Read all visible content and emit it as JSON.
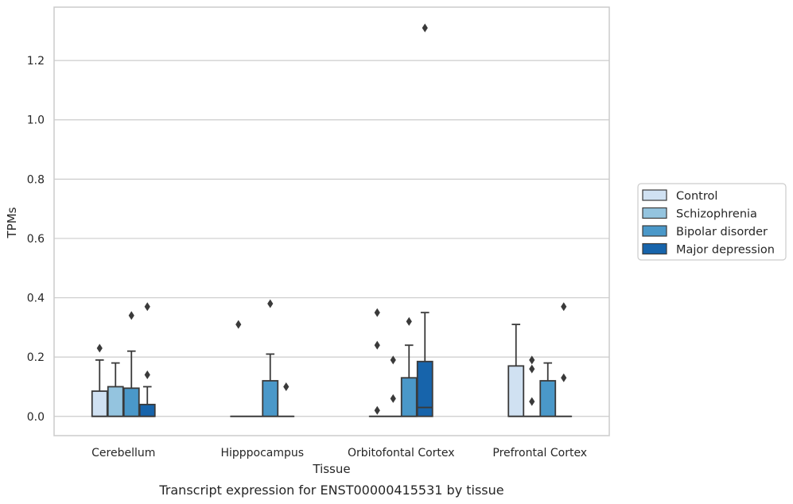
{
  "caption": "Transcript expression for ENST00000415531 by tissue",
  "chart_data": {
    "type": "boxplot",
    "xlabel": "Tissue",
    "ylabel": "TPMs",
    "ylim": [
      -0.065,
      1.38
    ],
    "yticks": [
      0.0,
      0.2,
      0.4,
      0.6,
      0.8,
      1.0,
      1.2
    ],
    "ytick_labels": [
      "0.0",
      "0.2",
      "0.4",
      "0.6",
      "0.8",
      "1.0",
      "1.2"
    ],
    "grid": true,
    "legend_position": "right",
    "categories": [
      "Cerebellum",
      "Hipppocampus",
      "Orbitofontal Cortex",
      "Prefrontal Cortex"
    ],
    "series": [
      {
        "name": "Control",
        "color": "#d0e1f2",
        "boxes": [
          {
            "whislo": 0.0,
            "q1": 0.0,
            "med": 0.0,
            "q3": 0.085,
            "whishi": 0.19,
            "fliers": [
              0.23
            ]
          },
          {
            "whislo": 0.0,
            "q1": 0.0,
            "med": 0.0,
            "q3": 0.0,
            "whishi": 0.0,
            "fliers": [
              0.31
            ]
          },
          {
            "whislo": 0.0,
            "q1": 0.0,
            "med": 0.0,
            "q3": 0.0,
            "whishi": 0.0,
            "fliers": [
              0.02,
              0.24,
              0.35
            ]
          },
          {
            "whislo": 0.0,
            "q1": 0.0,
            "med": 0.0,
            "q3": 0.17,
            "whishi": 0.31,
            "fliers": []
          }
        ]
      },
      {
        "name": "Schizophrenia",
        "color": "#94c4df",
        "boxes": [
          {
            "whislo": 0.0,
            "q1": 0.0,
            "med": 0.0,
            "q3": 0.1,
            "whishi": 0.18,
            "fliers": []
          },
          {
            "whislo": 0.0,
            "q1": 0.0,
            "med": 0.0,
            "q3": 0.0,
            "whishi": 0.0,
            "fliers": []
          },
          {
            "whislo": 0.0,
            "q1": 0.0,
            "med": 0.0,
            "q3": 0.0,
            "whishi": 0.0,
            "fliers": [
              0.06,
              0.19
            ]
          },
          {
            "whislo": 0.0,
            "q1": 0.0,
            "med": 0.0,
            "q3": 0.0,
            "whishi": 0.0,
            "fliers": [
              0.05,
              0.16,
              0.19
            ]
          }
        ]
      },
      {
        "name": "Bipolar disorder",
        "color": "#4a98c9",
        "boxes": [
          {
            "whislo": 0.0,
            "q1": 0.0,
            "med": 0.0,
            "q3": 0.095,
            "whishi": 0.22,
            "fliers": [
              0.34
            ]
          },
          {
            "whislo": 0.0,
            "q1": 0.0,
            "med": 0.0,
            "q3": 0.12,
            "whishi": 0.21,
            "fliers": [
              0.38
            ]
          },
          {
            "whislo": 0.0,
            "q1": 0.0,
            "med": 0.0,
            "q3": 0.13,
            "whishi": 0.24,
            "fliers": [
              0.32
            ]
          },
          {
            "whislo": 0.0,
            "q1": 0.0,
            "med": 0.0,
            "q3": 0.12,
            "whishi": 0.18,
            "fliers": []
          }
        ]
      },
      {
        "name": "Major depression",
        "color": "#1764ab",
        "boxes": [
          {
            "whislo": 0.0,
            "q1": 0.0,
            "med": 0.0,
            "q3": 0.04,
            "whishi": 0.1,
            "fliers": [
              0.14,
              0.37
            ]
          },
          {
            "whislo": 0.0,
            "q1": 0.0,
            "med": 0.0,
            "q3": 0.0,
            "whishi": 0.0,
            "fliers": [
              0.1
            ]
          },
          {
            "whislo": 0.0,
            "q1": 0.0,
            "med": 0.03,
            "q3": 0.185,
            "whishi": 0.35,
            "fliers": [
              1.31
            ]
          },
          {
            "whislo": 0.0,
            "q1": 0.0,
            "med": 0.0,
            "q3": 0.0,
            "whishi": 0.0,
            "fliers": [
              0.13,
              0.37
            ]
          }
        ]
      }
    ]
  }
}
